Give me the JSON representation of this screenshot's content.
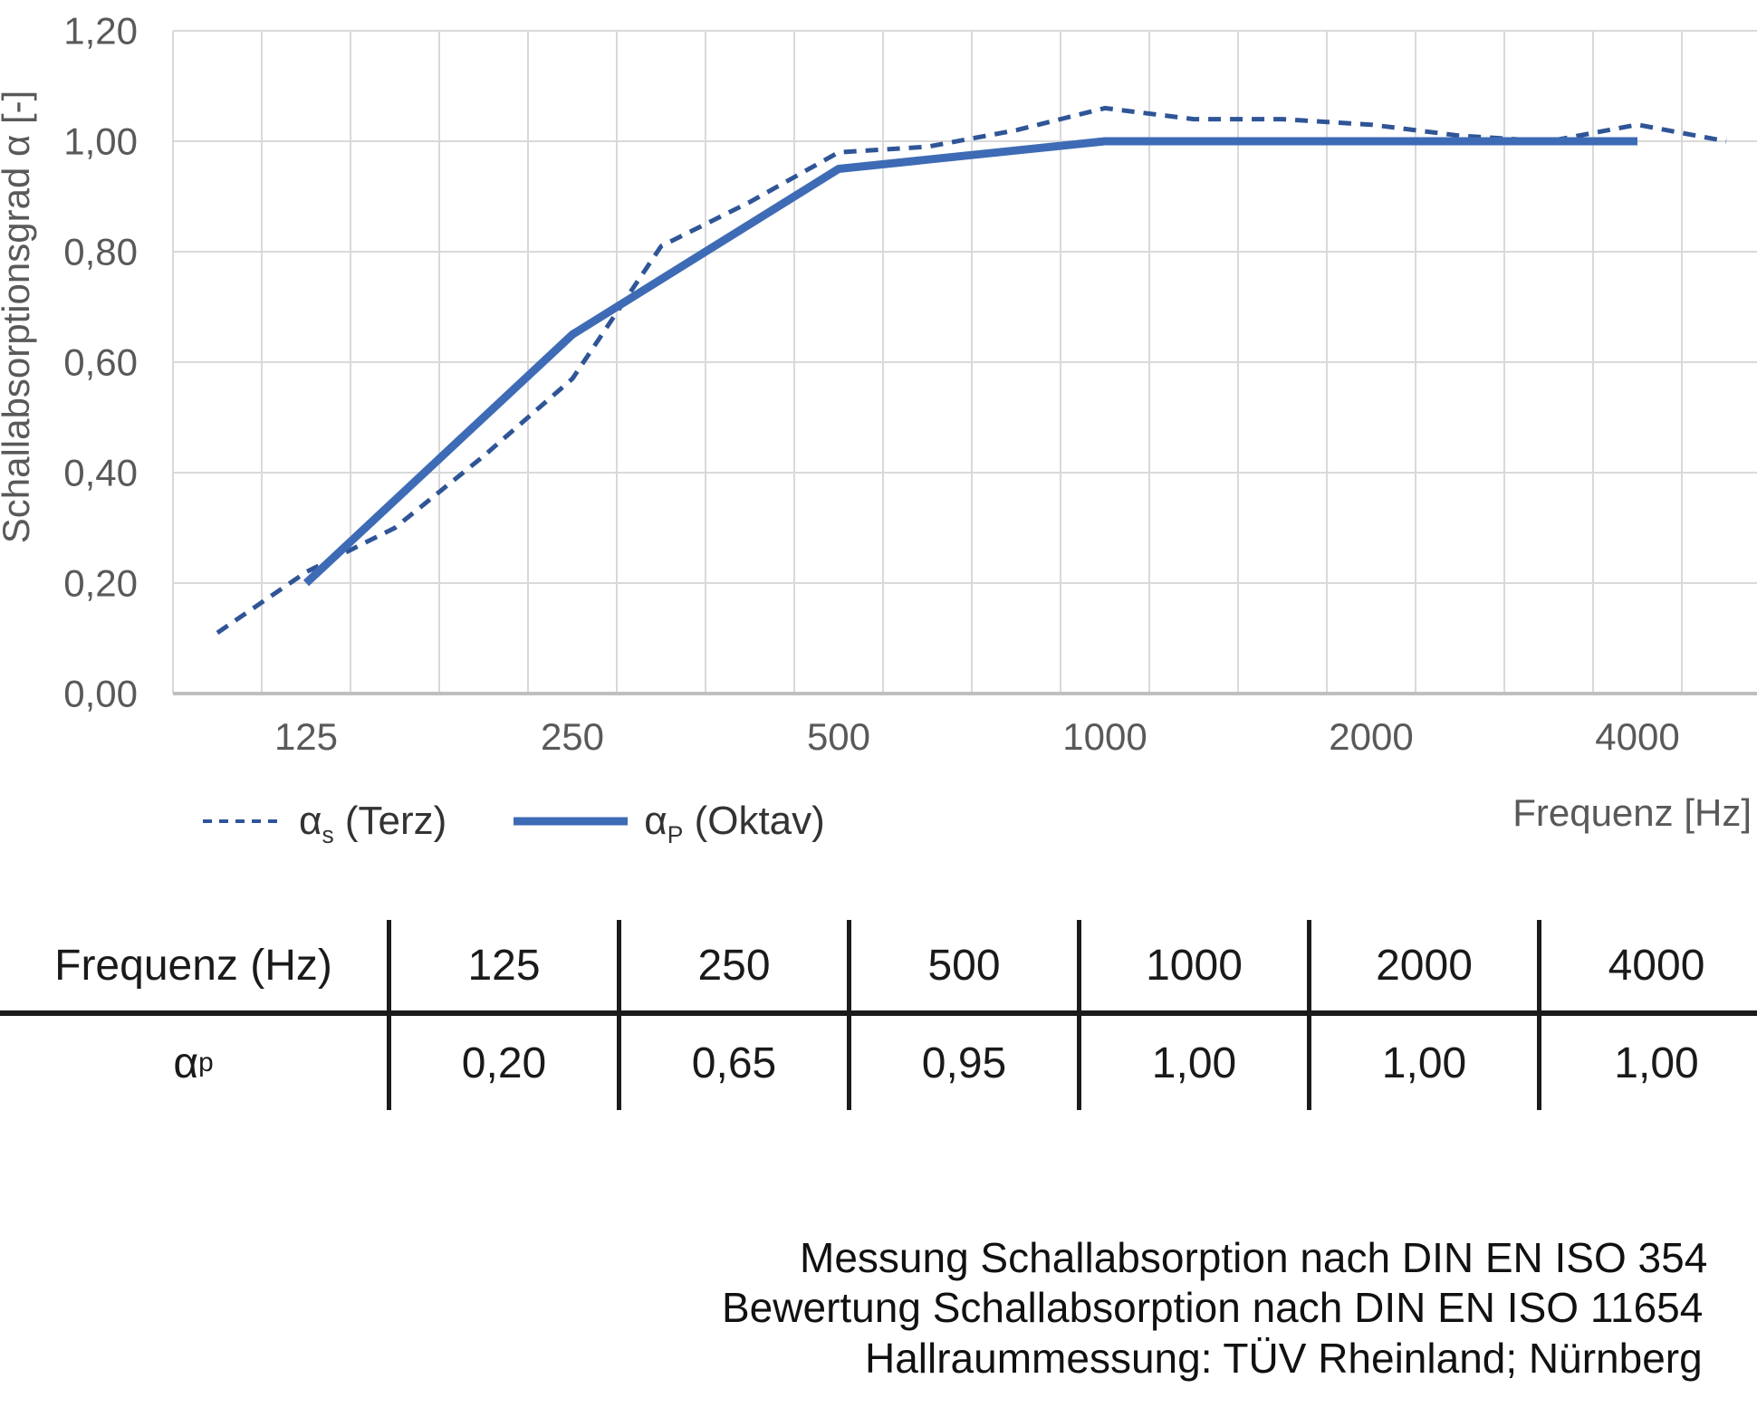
{
  "chart": {
    "ylabel": "Schallabsorptionsgrad α [-]",
    "xlabel": "Frequenz [Hz]",
    "y_tick_labels": [
      "0,00",
      "0,20",
      "0,40",
      "0,60",
      "0,80",
      "1,00",
      "1,20"
    ],
    "x_tick_labels": [
      "125",
      "250",
      "500",
      "1000",
      "2000",
      "4000"
    ]
  },
  "chart_data": {
    "type": "line",
    "x_axis": "third-octave-band categories, log-style spacing",
    "x_categories": [
      "100",
      "125",
      "160",
      "200",
      "250",
      "315",
      "400",
      "500",
      "630",
      "800",
      "1000",
      "1250",
      "1600",
      "2000",
      "2500",
      "3150",
      "4000",
      "5000"
    ],
    "ylim": [
      0,
      1.2
    ],
    "y_step": 0.2,
    "grid": true,
    "legend_position": "bottom-left",
    "title": "",
    "series": [
      {
        "name": "αs (Terz)",
        "style": "dashed",
        "color": "#2F5597",
        "x": [
          "100",
          "125",
          "160",
          "200",
          "250",
          "315",
          "400",
          "500",
          "630",
          "800",
          "1000",
          "1250",
          "1600",
          "2000",
          "2500",
          "3150",
          "4000",
          "5000"
        ],
        "values": [
          0.11,
          0.22,
          0.3,
          0.43,
          0.57,
          0.81,
          0.89,
          0.98,
          0.99,
          1.02,
          1.06,
          1.04,
          1.04,
          1.03,
          1.01,
          1.0,
          1.03,
          1.0
        ]
      },
      {
        "name": "αP (Oktav)",
        "style": "solid",
        "color": "#3E6BB5",
        "x": [
          "125",
          "250",
          "500",
          "1000",
          "2000",
          "4000"
        ],
        "values": [
          0.2,
          0.65,
          0.95,
          1.0,
          1.0,
          1.0
        ]
      }
    ]
  },
  "legend": {
    "items": [
      {
        "alpha": "α",
        "sub": "s",
        "rest": " (Terz)"
      },
      {
        "alpha": "α",
        "sub": "P",
        "rest": " (Oktav)"
      }
    ]
  },
  "table": {
    "header_label": "Frequenz (Hz)",
    "frequencies": [
      "125",
      "250",
      "500",
      "1000",
      "2000",
      "4000"
    ],
    "row_label_alpha": "α",
    "row_label_sub": "p",
    "values": [
      "0,20",
      "0,65",
      "0,95",
      "1,00",
      "1,00",
      "1,00"
    ]
  },
  "notes": {
    "lines": [
      "Messung Schallabsorption nach DIN EN ISO 354",
      "Bewertung Schallabsorption nach DIN EN ISO 11654",
      "Hallraummessung: TÜV Rheinland; Nürnberg"
    ]
  },
  "colors": {
    "series_terz": "#2F5597",
    "series_oktav": "#3E6BB5",
    "gridline": "#D9D9D9",
    "axis_line": "#BFBFBF",
    "tick_text": "#595959",
    "table_text": "#1A1A1A"
  }
}
